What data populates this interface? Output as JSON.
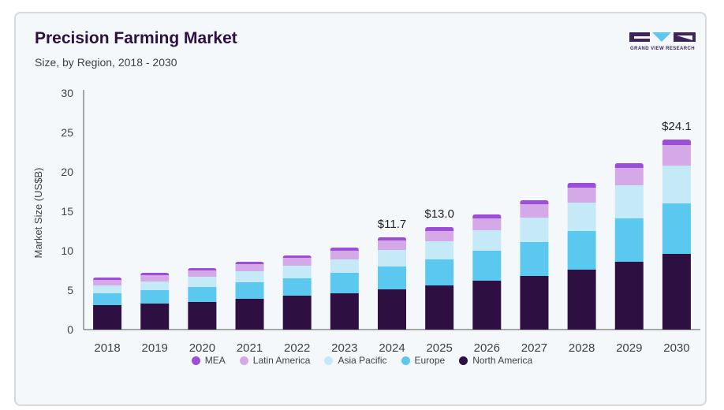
{
  "header": {
    "title": "Precision Farming Market",
    "subtitle": "Size, by Region, 2018 - 2030"
  },
  "logo": {
    "name": "grand-view-research-logo",
    "text": "GRAND VIEW RESEARCH"
  },
  "colors": {
    "mea": "#9b4fd6",
    "latin_america": "#d5a8e8",
    "asia_pacific": "#c6e9f8",
    "europe": "#5bc8ef",
    "north_america": "#2d1041",
    "axis": "#555555",
    "text": "#3f3f46"
  },
  "chart_data": {
    "type": "bar",
    "stacked": true,
    "title": "Precision Farming Market",
    "subtitle": "Size, by Region, 2018 - 2030",
    "xlabel": "",
    "ylabel": "Market Size (US$B)",
    "ylim": [
      0,
      30
    ],
    "yticks": [
      0,
      5,
      10,
      15,
      20,
      25,
      30
    ],
    "grid": false,
    "legend_position": "bottom",
    "categories": [
      "2018",
      "2019",
      "2020",
      "2021",
      "2022",
      "2023",
      "2024",
      "2025",
      "2026",
      "2027",
      "2028",
      "2029",
      "2030"
    ],
    "series": [
      {
        "name": "North America",
        "color": "#2d1041",
        "values": [
          3.1,
          3.3,
          3.5,
          3.9,
          4.3,
          4.6,
          5.1,
          5.6,
          6.2,
          6.8,
          7.6,
          8.6,
          9.6
        ]
      },
      {
        "name": "Europe",
        "color": "#5bc8ef",
        "values": [
          1.5,
          1.7,
          1.9,
          2.1,
          2.2,
          2.6,
          2.9,
          3.3,
          3.8,
          4.3,
          4.9,
          5.5,
          6.4
        ]
      },
      {
        "name": "Asia Pacific",
        "color": "#c6e9f8",
        "values": [
          1.0,
          1.1,
          1.3,
          1.4,
          1.6,
          1.7,
          2.1,
          2.3,
          2.6,
          3.1,
          3.6,
          4.2,
          4.8
        ]
      },
      {
        "name": "Latin America",
        "color": "#d5a8e8",
        "values": [
          0.7,
          0.8,
          0.8,
          0.9,
          1.0,
          1.1,
          1.2,
          1.3,
          1.5,
          1.7,
          1.9,
          2.2,
          2.6
        ]
      },
      {
        "name": "MEA",
        "color": "#9b4fd6",
        "values": [
          0.3,
          0.3,
          0.3,
          0.3,
          0.3,
          0.4,
          0.4,
          0.5,
          0.5,
          0.5,
          0.6,
          0.6,
          0.7
        ]
      }
    ],
    "annotations": [
      {
        "category": "2024",
        "text": "$11.7",
        "value": 11.7
      },
      {
        "category": "2025",
        "text": "$13.0",
        "value": 13.0
      },
      {
        "category": "2030",
        "text": "$24.1",
        "value": 24.1
      }
    ],
    "legend_order": [
      "MEA",
      "Latin America",
      "Asia Pacific",
      "Europe",
      "North America"
    ]
  }
}
